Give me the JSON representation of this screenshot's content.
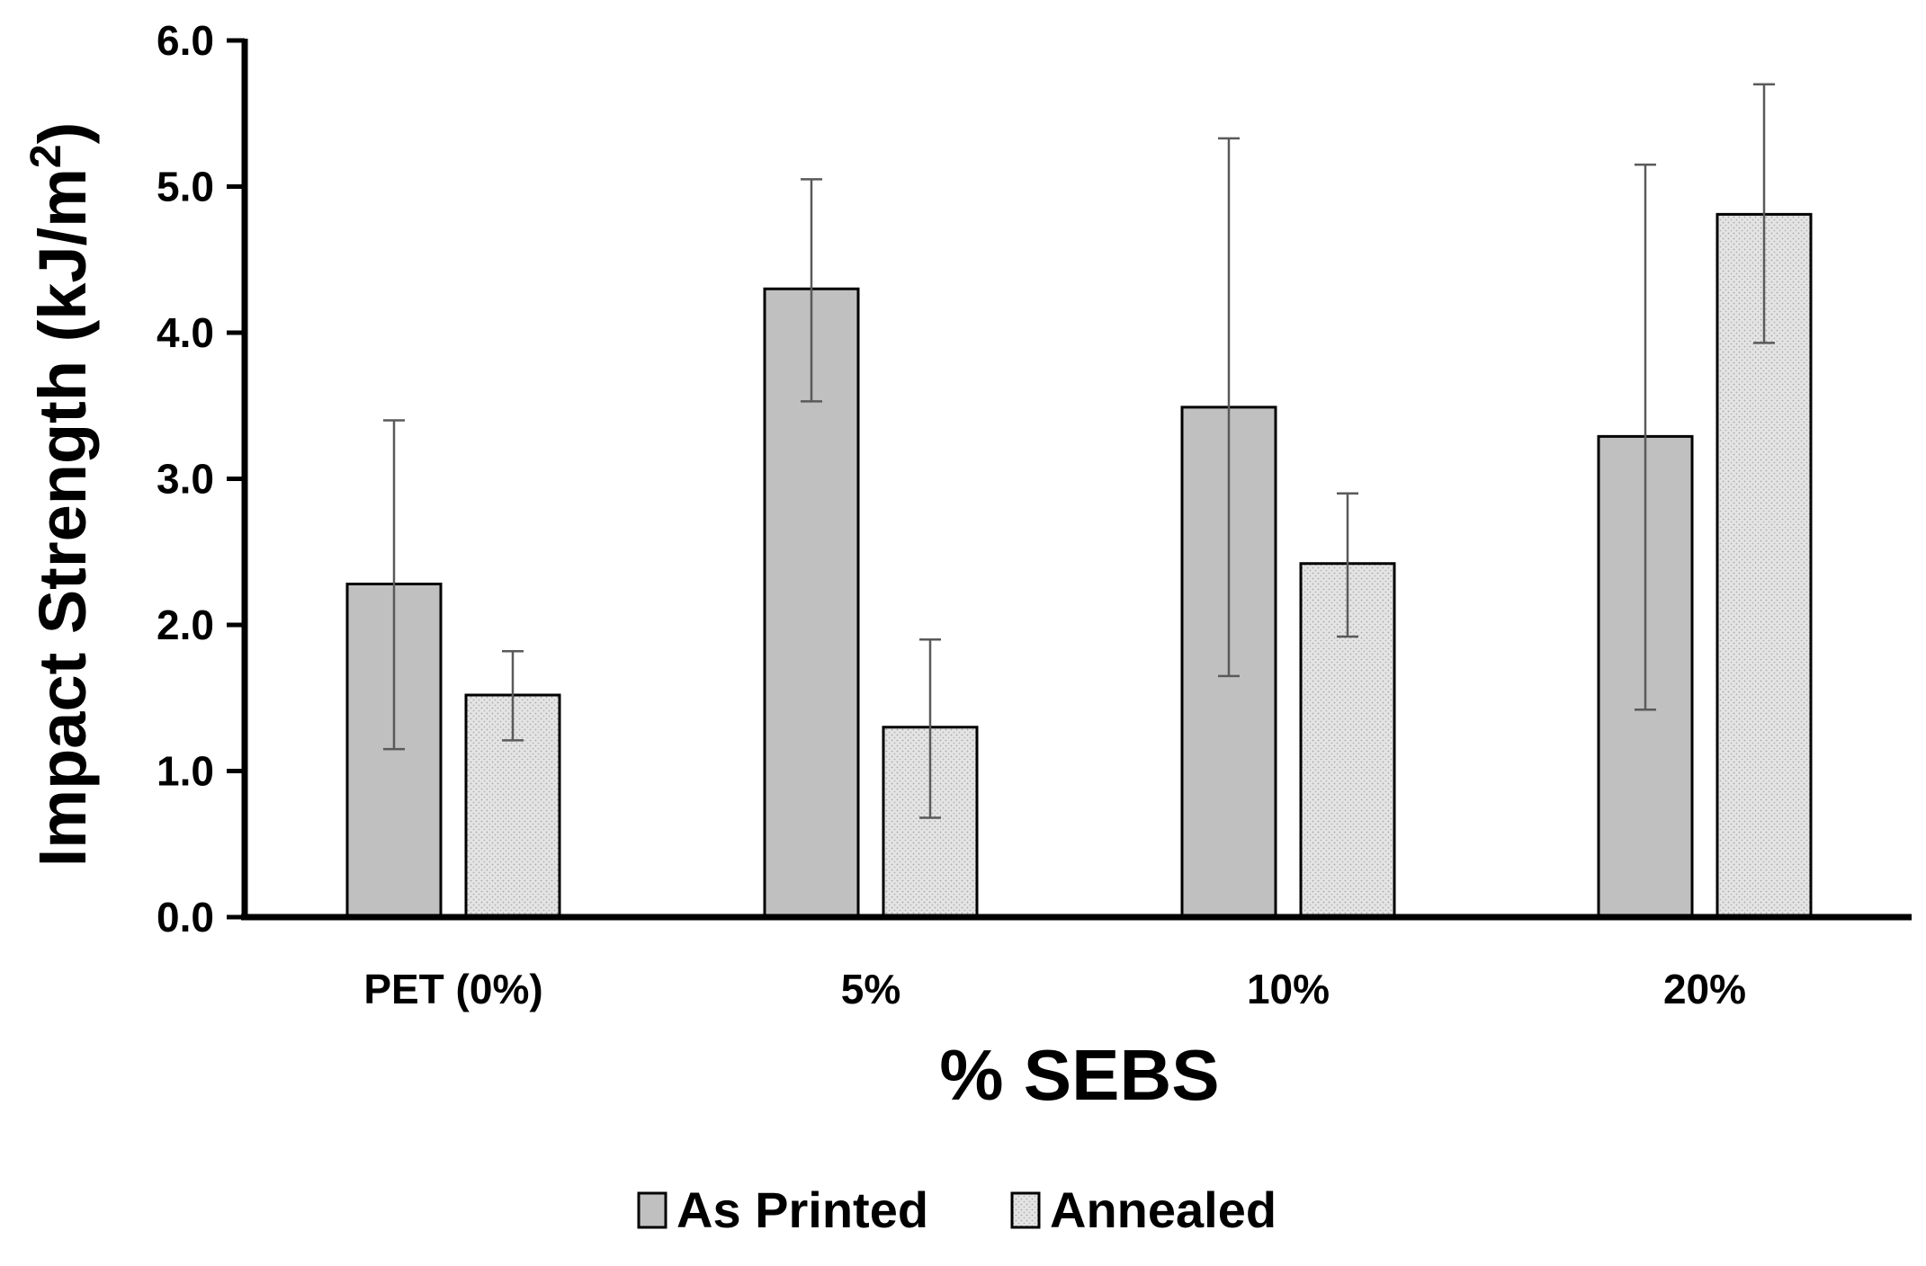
{
  "chart_data": {
    "type": "bar",
    "title": "",
    "xlabel": "% SEBS",
    "ylabel": "Impact Strength (kJ/m",
    "ylabel_superscript": "2",
    "ylabel_suffix": ")",
    "categories": [
      "PET (0%)",
      "5%",
      "10%",
      "20%"
    ],
    "ylim": [
      0,
      6
    ],
    "yticks": [
      "0.0",
      "1.0",
      "2.0",
      "3.0",
      "4.0",
      "5.0",
      "6.0"
    ],
    "grid": false,
    "legend_position": "bottom-center",
    "series": [
      {
        "name": "As Printed",
        "values": [
          2.28,
          4.3,
          3.49,
          3.29
        ],
        "error_low": [
          1.15,
          3.53,
          1.65,
          1.42
        ],
        "error_high": [
          3.4,
          5.05,
          5.33,
          5.15
        ],
        "fill": "#c0c0c0",
        "pattern": "solid"
      },
      {
        "name": "Annealed",
        "values": [
          1.52,
          1.3,
          2.42,
          4.81
        ],
        "error_low": [
          1.21,
          0.68,
          1.92,
          3.93
        ],
        "error_high": [
          1.82,
          1.9,
          2.9,
          5.7
        ],
        "fill": "#e2e2e2",
        "pattern": "dotted"
      }
    ]
  }
}
